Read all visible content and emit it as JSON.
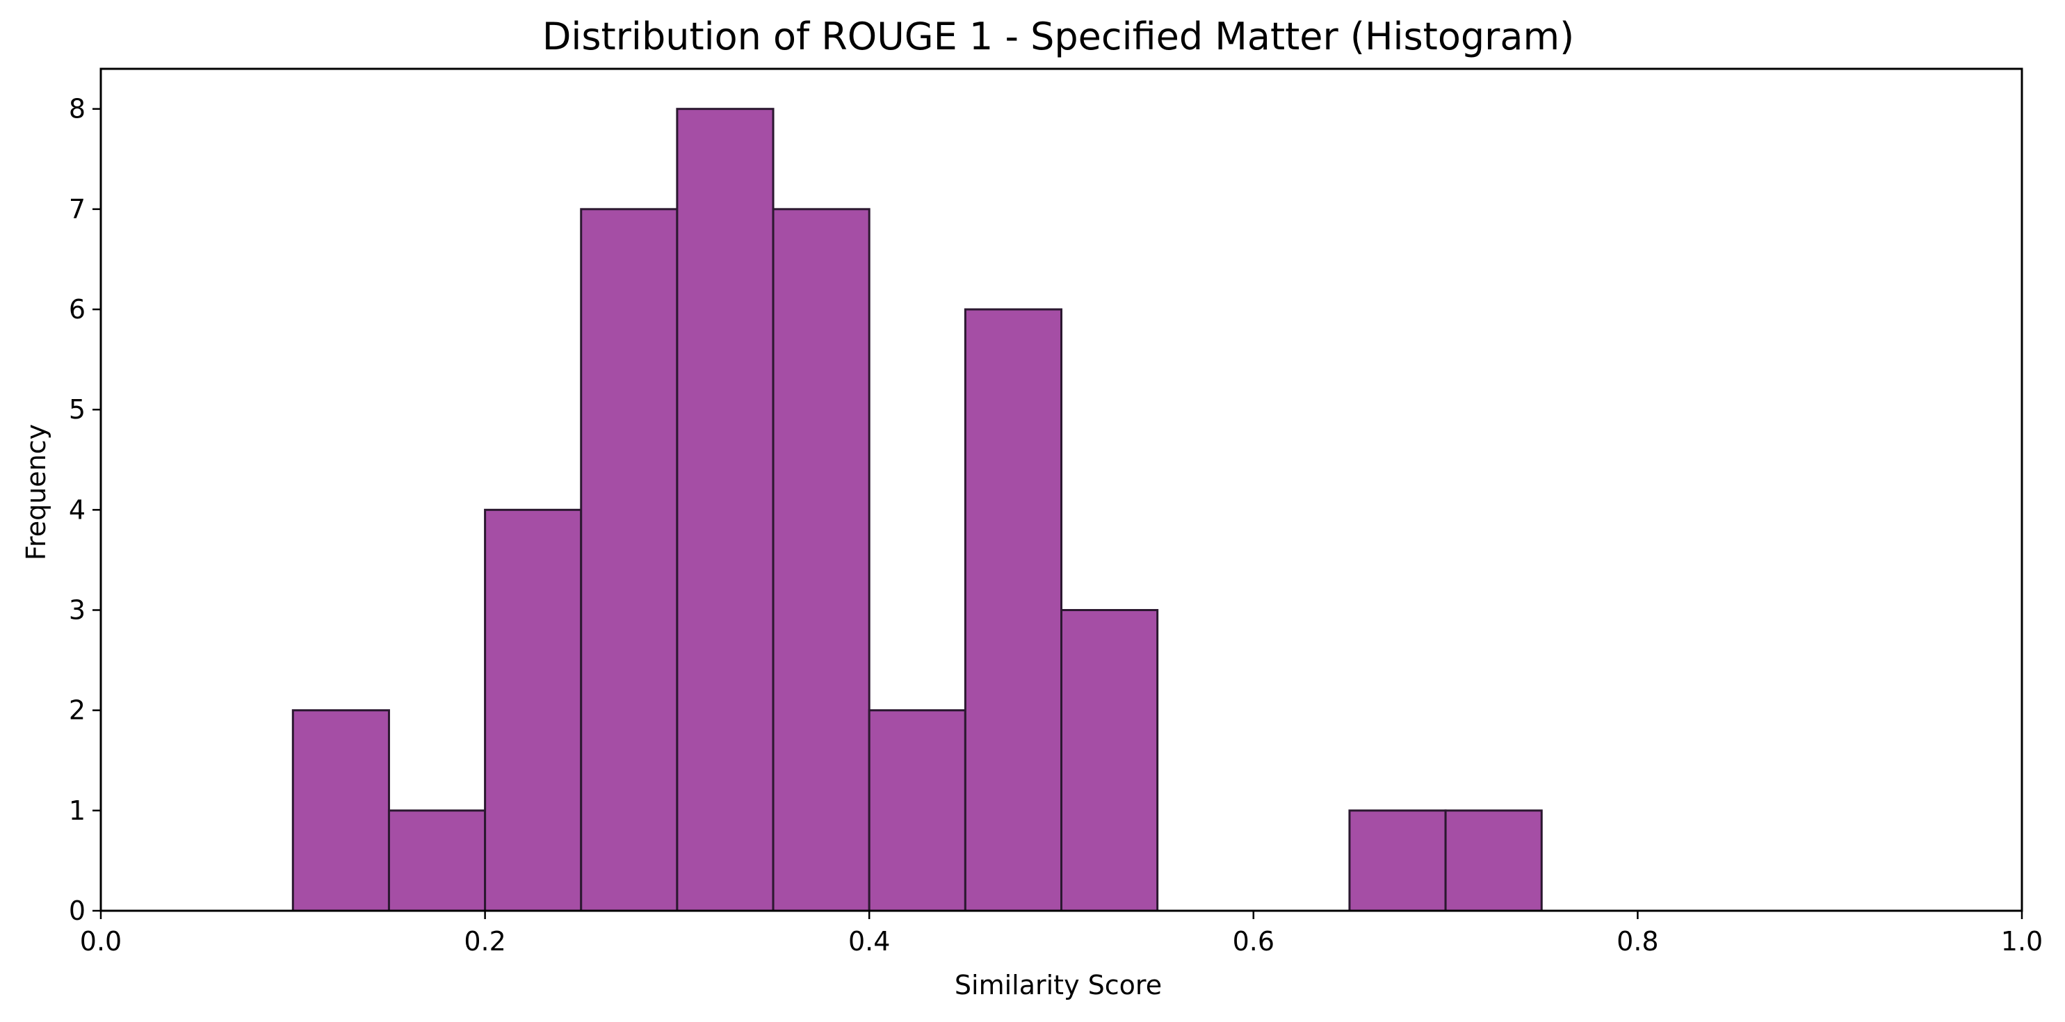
{
  "chart_data": {
    "type": "bar",
    "title": "Distribution of ROUGE 1 - Specified Matter (Histogram)",
    "xlabel": "Similarity Score",
    "ylabel": "Frequency",
    "xlim": [
      0.0,
      1.0
    ],
    "ylim": [
      0,
      8.4
    ],
    "x_ticks": [
      "0.0",
      "0.2",
      "0.4",
      "0.6",
      "0.8",
      "1.0"
    ],
    "y_ticks": [
      "0",
      "1",
      "2",
      "3",
      "4",
      "5",
      "6",
      "7",
      "8"
    ],
    "grid": false,
    "bins": [
      {
        "start": 0.1,
        "end": 0.15,
        "count": 2
      },
      {
        "start": 0.15,
        "end": 0.2,
        "count": 1
      },
      {
        "start": 0.2,
        "end": 0.25,
        "count": 4
      },
      {
        "start": 0.25,
        "end": 0.3,
        "count": 7
      },
      {
        "start": 0.3,
        "end": 0.35,
        "count": 8
      },
      {
        "start": 0.35,
        "end": 0.4,
        "count": 7
      },
      {
        "start": 0.4,
        "end": 0.45,
        "count": 2
      },
      {
        "start": 0.45,
        "end": 0.5,
        "count": 6
      },
      {
        "start": 0.5,
        "end": 0.55,
        "count": 3
      },
      {
        "start": 0.65,
        "end": 0.7,
        "count": 1
      },
      {
        "start": 0.7,
        "end": 0.75,
        "count": 1
      }
    ],
    "colors": {
      "bar_fill": "#A54EA5",
      "bar_edge": "#2B1830",
      "axis": "#000000"
    }
  }
}
